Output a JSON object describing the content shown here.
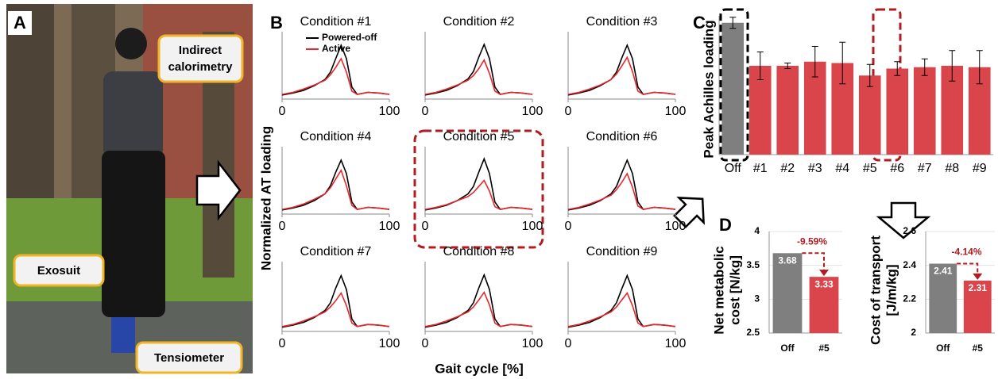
{
  "figure": {
    "panel_labels": [
      "A",
      "B",
      "C",
      "D"
    ],
    "calorimetry_label": [
      "Indirect",
      "calorimetry"
    ],
    "exosuit_label": "Exosuit",
    "tensiometer_label": "Tensiometer",
    "b_ylabel": "Normalized AT loading",
    "b_xlabel": "Gait cycle [%]"
  },
  "chart_data": [
    {
      "type": "line",
      "title": "Condition #1",
      "x": [
        0,
        10,
        20,
        30,
        40,
        45,
        50,
        55,
        60,
        65,
        70,
        80,
        90,
        100
      ],
      "xlim": [
        0,
        100
      ],
      "xticks": [
        0,
        100
      ],
      "ylim": [
        0,
        1
      ],
      "series": [
        {
          "name": "Powered-off",
          "color": "#000000",
          "values": [
            0.06,
            0.09,
            0.13,
            0.2,
            0.29,
            0.4,
            0.6,
            0.8,
            0.6,
            0.18,
            0.07,
            0.1,
            0.09,
            0.07
          ]
        },
        {
          "name": "Active",
          "color": "#e8262b",
          "values": [
            0.07,
            0.1,
            0.15,
            0.21,
            0.28,
            0.36,
            0.47,
            0.6,
            0.4,
            0.12,
            0.07,
            0.1,
            0.09,
            0.07
          ]
        }
      ]
    },
    {
      "type": "line",
      "title": "Condition #2",
      "x": [
        0,
        10,
        20,
        30,
        40,
        45,
        50,
        55,
        60,
        65,
        70,
        80,
        90,
        100
      ],
      "xlim": [
        0,
        100
      ],
      "xticks": [
        0,
        100
      ],
      "ylim": [
        0,
        1
      ],
      "series": [
        {
          "color": "#000000",
          "values": [
            0.06,
            0.09,
            0.13,
            0.2,
            0.3,
            0.41,
            0.62,
            0.81,
            0.6,
            0.18,
            0.07,
            0.1,
            0.09,
            0.07
          ]
        },
        {
          "color": "#e8262b",
          "values": [
            0.07,
            0.1,
            0.15,
            0.21,
            0.28,
            0.35,
            0.45,
            0.58,
            0.38,
            0.12,
            0.07,
            0.1,
            0.09,
            0.07
          ]
        }
      ]
    },
    {
      "type": "line",
      "title": "Condition #3",
      "x": [
        0,
        10,
        20,
        30,
        40,
        45,
        50,
        55,
        60,
        65,
        70,
        80,
        90,
        100
      ],
      "xlim": [
        0,
        100
      ],
      "xticks": [
        0,
        100
      ],
      "ylim": [
        0,
        1
      ],
      "series": [
        {
          "color": "#000000",
          "values": [
            0.06,
            0.09,
            0.13,
            0.2,
            0.29,
            0.4,
            0.61,
            0.8,
            0.6,
            0.18,
            0.07,
            0.1,
            0.09,
            0.07
          ]
        },
        {
          "color": "#e8262b",
          "values": [
            0.07,
            0.1,
            0.15,
            0.21,
            0.29,
            0.37,
            0.49,
            0.62,
            0.41,
            0.12,
            0.07,
            0.1,
            0.09,
            0.07
          ]
        }
      ]
    },
    {
      "type": "line",
      "title": "Condition #4",
      "x": [
        0,
        10,
        20,
        30,
        40,
        45,
        50,
        55,
        60,
        65,
        70,
        80,
        90,
        100
      ],
      "xlim": [
        0,
        100
      ],
      "xticks": [
        0,
        100
      ],
      "ylim": [
        0,
        1
      ],
      "series": [
        {
          "color": "#000000",
          "values": [
            0.06,
            0.09,
            0.13,
            0.2,
            0.3,
            0.42,
            0.62,
            0.8,
            0.6,
            0.18,
            0.07,
            0.1,
            0.09,
            0.07
          ]
        },
        {
          "color": "#e8262b",
          "values": [
            0.07,
            0.1,
            0.15,
            0.22,
            0.3,
            0.39,
            0.52,
            0.65,
            0.42,
            0.13,
            0.07,
            0.1,
            0.09,
            0.07
          ]
        }
      ]
    },
    {
      "type": "line",
      "title": "Condition #5",
      "x": [
        0,
        10,
        20,
        30,
        40,
        45,
        50,
        55,
        60,
        65,
        70,
        80,
        90,
        100
      ],
      "xlim": [
        0,
        100
      ],
      "xticks": [
        0,
        100
      ],
      "ylim": [
        0,
        1
      ],
      "series": [
        {
          "color": "#000000",
          "values": [
            0.06,
            0.09,
            0.13,
            0.2,
            0.3,
            0.41,
            0.62,
            0.82,
            0.6,
            0.18,
            0.07,
            0.1,
            0.09,
            0.07
          ]
        },
        {
          "color": "#e8262b",
          "values": [
            0.07,
            0.1,
            0.14,
            0.2,
            0.26,
            0.32,
            0.41,
            0.5,
            0.34,
            0.11,
            0.07,
            0.1,
            0.09,
            0.07
          ]
        }
      ]
    },
    {
      "type": "line",
      "title": "Condition #6",
      "x": [
        0,
        10,
        20,
        30,
        40,
        45,
        50,
        55,
        60,
        65,
        70,
        80,
        90,
        100
      ],
      "xlim": [
        0,
        100
      ],
      "xticks": [
        0,
        100
      ],
      "ylim": [
        0,
        1
      ],
      "series": [
        {
          "color": "#000000",
          "values": [
            0.06,
            0.09,
            0.13,
            0.2,
            0.3,
            0.41,
            0.61,
            0.8,
            0.6,
            0.18,
            0.07,
            0.1,
            0.09,
            0.07
          ]
        },
        {
          "color": "#e8262b",
          "values": [
            0.07,
            0.1,
            0.15,
            0.21,
            0.28,
            0.36,
            0.47,
            0.6,
            0.4,
            0.12,
            0.07,
            0.1,
            0.09,
            0.07
          ]
        }
      ]
    },
    {
      "type": "line",
      "title": "Condition #7",
      "x": [
        0,
        10,
        20,
        30,
        40,
        45,
        50,
        55,
        60,
        65,
        70,
        80,
        90,
        100
      ],
      "xlim": [
        0,
        100
      ],
      "xticks": [
        0,
        100
      ],
      "ylim": [
        0,
        1
      ],
      "series": [
        {
          "color": "#000000",
          "values": [
            0.06,
            0.09,
            0.13,
            0.2,
            0.3,
            0.41,
            0.62,
            0.8,
            0.6,
            0.18,
            0.07,
            0.1,
            0.09,
            0.07
          ]
        },
        {
          "color": "#e8262b",
          "values": [
            0.07,
            0.1,
            0.15,
            0.21,
            0.28,
            0.35,
            0.44,
            0.55,
            0.37,
            0.12,
            0.07,
            0.1,
            0.09,
            0.07
          ]
        }
      ]
    },
    {
      "type": "line",
      "title": "Condition #8",
      "x": [
        0,
        10,
        20,
        30,
        40,
        45,
        50,
        55,
        60,
        65,
        70,
        80,
        90,
        100
      ],
      "xlim": [
        0,
        100
      ],
      "xticks": [
        0,
        100
      ],
      "ylim": [
        0,
        1
      ],
      "series": [
        {
          "color": "#000000",
          "values": [
            0.06,
            0.09,
            0.13,
            0.2,
            0.3,
            0.41,
            0.62,
            0.81,
            0.6,
            0.18,
            0.07,
            0.1,
            0.09,
            0.07
          ]
        },
        {
          "color": "#e8262b",
          "values": [
            0.07,
            0.1,
            0.15,
            0.21,
            0.28,
            0.35,
            0.45,
            0.56,
            0.38,
            0.12,
            0.07,
            0.1,
            0.09,
            0.07
          ]
        }
      ]
    },
    {
      "type": "line",
      "title": "Condition #9",
      "x": [
        0,
        10,
        20,
        30,
        40,
        45,
        50,
        55,
        60,
        65,
        70,
        80,
        90,
        100
      ],
      "xlim": [
        0,
        100
      ],
      "xticks": [
        0,
        100
      ],
      "ylim": [
        0,
        1
      ],
      "series": [
        {
          "color": "#000000",
          "values": [
            0.06,
            0.09,
            0.13,
            0.2,
            0.3,
            0.41,
            0.61,
            0.8,
            0.6,
            0.18,
            0.07,
            0.1,
            0.09,
            0.07
          ]
        },
        {
          "color": "#e8262b",
          "values": [
            0.07,
            0.1,
            0.15,
            0.21,
            0.28,
            0.35,
            0.45,
            0.55,
            0.37,
            0.12,
            0.07,
            0.1,
            0.09,
            0.07
          ]
        }
      ]
    },
    {
      "type": "bar",
      "ylabel": "Peak Achilles loading",
      "categories": [
        "Off",
        "#1",
        "#2",
        "#3",
        "#4",
        "#5",
        "#6",
        "#7",
        "#8",
        "#9"
      ],
      "values": [
        0.95,
        0.64,
        0.64,
        0.67,
        0.66,
        0.57,
        0.62,
        0.63,
        0.64,
        0.63
      ],
      "errors": [
        0.04,
        0.1,
        0.02,
        0.11,
        0.15,
        0.08,
        0.05,
        0.06,
        0.11,
        0.12
      ],
      "colors": [
        "#7f7f7f",
        "#d9454a",
        "#d9454a",
        "#d9454a",
        "#d9454a",
        "#d9454a",
        "#d9454a",
        "#d9454a",
        "#d9454a",
        "#d9454a"
      ],
      "ylim": [
        0,
        1
      ]
    },
    {
      "type": "bar",
      "ylabel": [
        "Net metabolic",
        "cost [N/kg]"
      ],
      "categories": [
        "Off",
        "#5"
      ],
      "values": [
        3.68,
        3.33
      ],
      "colors": [
        "#7f7f7f",
        "#d9454a"
      ],
      "ylim": [
        2.5,
        4
      ],
      "yticks": [
        2.5,
        3,
        3.5,
        4
      ],
      "grid": true,
      "show_values": true,
      "annotation": "-9.59%"
    },
    {
      "type": "bar",
      "ylabel": [
        "Cost of transport",
        "[J/m/kg]"
      ],
      "categories": [
        "Off",
        "#5"
      ],
      "values": [
        2.41,
        2.31
      ],
      "colors": [
        "#7f7f7f",
        "#d9454a"
      ],
      "ylim": [
        2,
        2.6
      ],
      "yticks": [
        2,
        2.2,
        2.4,
        2.6
      ],
      "grid": true,
      "show_values": true,
      "annotation": "-4.14%"
    }
  ]
}
